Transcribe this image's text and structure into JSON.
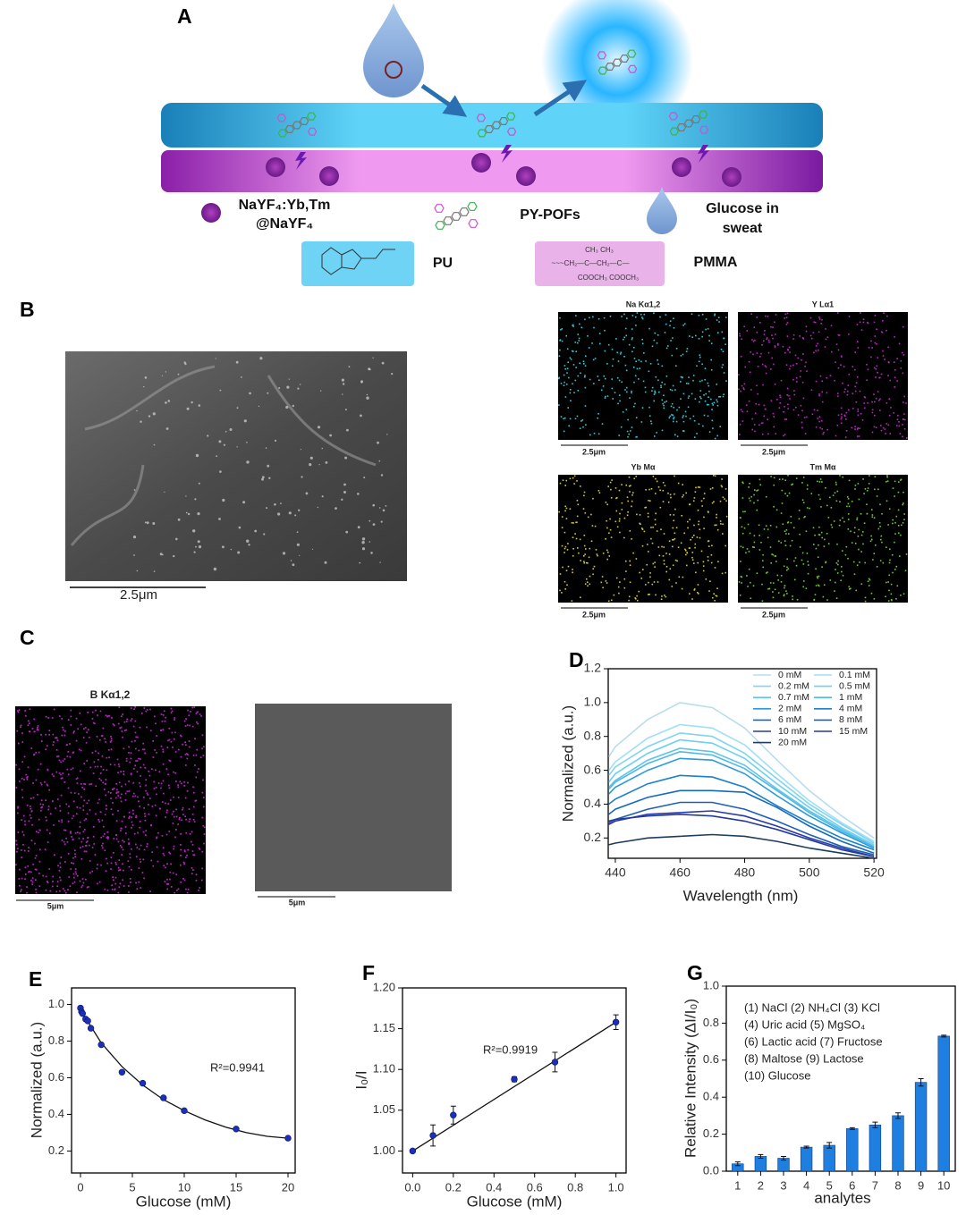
{
  "panel_labels": [
    "A",
    "B",
    "C"
  ],
  "schematic": {
    "nanoparticle": [
      "NaYF₄:Yb,Tm",
      "@NaYF₄"
    ],
    "pofs": "PY-POFs",
    "glucose": [
      "Glucose in",
      "sweat"
    ],
    "pu": "PU",
    "pmma": "PMMA",
    "pmma_formula": [
      "CH₃      CH₃",
      "~~~CH₂—C—CH₂—C—",
      "COOCH₃  COOCH₃"
    ]
  },
  "sem": {
    "scale_bar": "2.5μm"
  },
  "eds_maps": [
    {
      "title": "Na Kα1,2",
      "scale_bar": "2.5μm"
    },
    {
      "title": "Y Lα1",
      "scale_bar": "2.5μm"
    },
    {
      "title": "Yb Mα",
      "scale_bar": "2.5μm"
    },
    {
      "title": "Tm Mα",
      "scale_bar": "2.5μm"
    }
  ],
  "panel_c": {
    "map_title": "B Kα1,2",
    "scale_bars": [
      "5μm",
      "5μm"
    ]
  },
  "chart_data": [
    {
      "type": "line",
      "panel": "D",
      "x_label": "Wavelength (nm)",
      "y_label": "Normalized (a.u.)",
      "xlim": [
        437.8,
        520.8
      ],
      "xticks": [
        440,
        460,
        480,
        500,
        520
      ],
      "ylim": [
        0.08,
        1.2
      ],
      "yticks": [
        0.2,
        0.4,
        0.6,
        0.8,
        {
          "value": 1,
          "label": "1.0"
        },
        1.2
      ],
      "x": [
        438,
        440,
        450,
        460,
        470,
        480,
        490,
        500,
        510,
        520
      ],
      "series": [
        {
          "name": "0 mM",
          "color": "#b8dcf0",
          "values": [
            0.68,
            0.74,
            0.9,
            1.0,
            0.97,
            0.85,
            0.66,
            0.48,
            0.33,
            0.2
          ]
        },
        {
          "name": "0.1 mM",
          "color": "#9fe0f5",
          "values": [
            0.6,
            0.65,
            0.79,
            0.87,
            0.85,
            0.75,
            0.58,
            0.42,
            0.29,
            0.18
          ]
        },
        {
          "name": "0.2 mM",
          "color": "#7fd4f0",
          "values": [
            0.57,
            0.62,
            0.74,
            0.82,
            0.8,
            0.7,
            0.55,
            0.4,
            0.28,
            0.17
          ]
        },
        {
          "name": "0.5 mM",
          "color": "#6cd0ee",
          "values": [
            0.53,
            0.58,
            0.7,
            0.78,
            0.76,
            0.67,
            0.52,
            0.38,
            0.26,
            0.16
          ]
        },
        {
          "name": "0.7 mM",
          "color": "#5ec4ea",
          "values": [
            0.5,
            0.54,
            0.66,
            0.73,
            0.71,
            0.63,
            0.49,
            0.36,
            0.25,
            0.15
          ]
        },
        {
          "name": "1 mM",
          "color": "#4fb8e6",
          "values": [
            0.49,
            0.53,
            0.64,
            0.71,
            0.69,
            0.61,
            0.48,
            0.35,
            0.24,
            0.15
          ]
        },
        {
          "name": "2 mM",
          "color": "#2a9ad8",
          "values": [
            0.46,
            0.5,
            0.6,
            0.67,
            0.66,
            0.58,
            0.45,
            0.33,
            0.23,
            0.14
          ]
        },
        {
          "name": "4 mM",
          "color": "#1a7fcc",
          "values": [
            0.4,
            0.43,
            0.52,
            0.57,
            0.56,
            0.5,
            0.39,
            0.29,
            0.2,
            0.13
          ]
        },
        {
          "name": "6 mM",
          "color": "#1569bf",
          "values": [
            0.34,
            0.37,
            0.44,
            0.48,
            0.48,
            0.47,
            0.38,
            0.27,
            0.18,
            0.11
          ]
        },
        {
          "name": "8 mM",
          "color": "#1e5fb5",
          "values": [
            0.29,
            0.31,
            0.37,
            0.41,
            0.41,
            0.37,
            0.3,
            0.22,
            0.15,
            0.1
          ]
        },
        {
          "name": "10 mM",
          "color": "#2a3aa8",
          "values": [
            0.28,
            0.3,
            0.34,
            0.35,
            0.36,
            0.33,
            0.27,
            0.2,
            0.14,
            0.09
          ]
        },
        {
          "name": "15 mM",
          "color": "#243a9a",
          "values": [
            0.3,
            0.31,
            0.33,
            0.34,
            0.33,
            0.3,
            0.25,
            0.19,
            0.13,
            0.09
          ]
        },
        {
          "name": "20 mM",
          "color": "#1f3c5e",
          "values": [
            0.16,
            0.17,
            0.2,
            0.21,
            0.22,
            0.21,
            0.18,
            0.14,
            0.11,
            0.08
          ]
        }
      ]
    },
    {
      "type": "scatter",
      "panel": "E",
      "x_label": "Glucose (mM)",
      "y_label": "Normalized (a.u.)",
      "annotations": [
        "R²=0.9941"
      ],
      "xlim": [
        -0.86,
        20.69
      ],
      "xticks": [
        0,
        5,
        10,
        15,
        20
      ],
      "ylim": [
        0.08,
        1.09
      ],
      "yticks": [
        0.2,
        0.4,
        0.6,
        0.8,
        {
          "value": 1,
          "label": "1.0"
        }
      ],
      "color": "#1c2fb8",
      "x": [
        0,
        0.1,
        0.2,
        0.5,
        0.7,
        1,
        2,
        4,
        6,
        8,
        10,
        15,
        20
      ],
      "values": [
        0.98,
        0.96,
        0.95,
        0.92,
        0.91,
        0.87,
        0.78,
        0.63,
        0.57,
        0.49,
        0.42,
        0.32,
        0.27
      ],
      "fit": {
        "x": [
          0,
          2,
          4,
          6,
          8,
          10,
          12,
          14,
          16,
          18,
          20
        ],
        "values": [
          0.97,
          0.79,
          0.66,
          0.56,
          0.48,
          0.42,
          0.37,
          0.33,
          0.3,
          0.28,
          0.27
        ]
      }
    },
    {
      "type": "scatter",
      "panel": "F",
      "x_label": "Glucose (mM)",
      "y_label": "I₀/I",
      "annotations": [
        "R²=0.9919"
      ],
      "xlim": [
        -0.05,
        1.05
      ],
      "xticks": [
        {
          "value": 0,
          "label": "0.0"
        },
        0.2,
        0.4,
        0.6,
        0.8,
        {
          "value": 1,
          "label": "1.0"
        }
      ],
      "ylim": [
        0.973,
        1.2
      ],
      "yticks": [
        {
          "value": 1,
          "label": "1.00"
        },
        1.05,
        {
          "value": 1.1,
          "label": "1.10"
        },
        1.15,
        {
          "value": 1.2,
          "label": "1.20"
        }
      ],
      "color": "#1c2fb8",
      "x": [
        0,
        0.1,
        0.2,
        0.5,
        0.7,
        1
      ],
      "values": [
        1.0,
        1.019,
        1.044,
        1.088,
        1.109,
        1.158
      ],
      "errors": [
        0.002,
        0.013,
        0.011,
        0.003,
        0.012,
        0.009
      ],
      "fit": {
        "x": [
          0,
          1
        ],
        "values": [
          1.0,
          1.158
        ]
      }
    },
    {
      "type": "bar",
      "panel": "G",
      "x_label": "analytes",
      "y_label": "Relative Intensity (ΔI/I₀)",
      "annotations": [
        "(1) NaCl  (2) NH₄Cl  (3) KCl",
        "(4) Uric acid  (5) MgSO₄",
        "(6) Lactic acid  (7) Fructose",
        "(8) Maltose  (9) Lactose",
        "(10) Glucose"
      ],
      "ylim": [
        0,
        1
      ],
      "yticks": [
        {
          "value": 0,
          "label": "0.0"
        },
        0.2,
        0.4,
        0.6,
        0.8,
        {
          "value": 1,
          "label": "1.0"
        }
      ],
      "color": "#1f7fe0",
      "categories": [
        "1",
        "2",
        "3",
        "4",
        "5",
        "6",
        "7",
        "8",
        "9",
        "10"
      ],
      "values": [
        0.04,
        0.08,
        0.07,
        0.13,
        0.14,
        0.23,
        0.25,
        0.3,
        0.48,
        0.73
      ],
      "errors": [
        0.01,
        0.01,
        0.01,
        0.005,
        0.015,
        0.005,
        0.015,
        0.015,
        0.02,
        0.005
      ]
    }
  ]
}
